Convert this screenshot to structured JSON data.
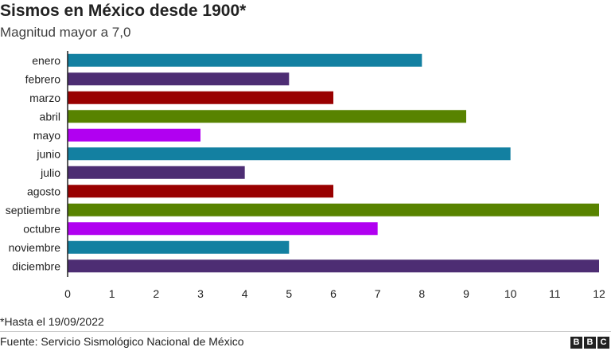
{
  "header": {
    "title": "Sismos en México desde 1900*",
    "subtitle": "Magnitud mayor a 7,0"
  },
  "footer": {
    "note": "*Hasta el 19/09/2022",
    "source": "Fuente: Servicio Sismológico Nacional de México",
    "logo_letters": [
      "B",
      "B",
      "C"
    ]
  },
  "chart_data": {
    "type": "bar",
    "orientation": "horizontal",
    "title": "Sismos en México desde 1900*",
    "subtitle": "Magnitud mayor a 7,0",
    "categories": [
      "enero",
      "febrero",
      "marzo",
      "abril",
      "mayo",
      "junio",
      "julio",
      "agosto",
      "septiembre",
      "octubre",
      "noviembre",
      "diciembre"
    ],
    "values": [
      8,
      5,
      6,
      9,
      3,
      10,
      4,
      6,
      12,
      7,
      5,
      12
    ],
    "bar_colors": [
      "#1380A1",
      "#4D2D73",
      "#990000",
      "#588300",
      "#B100F1",
      "#1380A1",
      "#4D2D73",
      "#990000",
      "#588300",
      "#B100F1",
      "#1380A1",
      "#4D2D73"
    ],
    "xlim": [
      0,
      12
    ],
    "xticks": [
      "0",
      "1",
      "2",
      "3",
      "4",
      "5",
      "6",
      "7",
      "8",
      "9",
      "10",
      "11",
      "12"
    ],
    "grid": false,
    "legend": "none"
  }
}
